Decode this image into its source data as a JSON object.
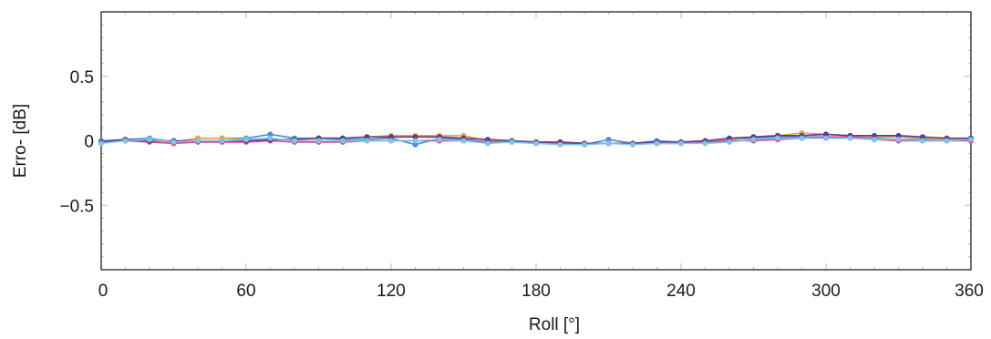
{
  "chart_data": {
    "type": "line",
    "title": "",
    "xlabel": "Roll [°]",
    "ylabel": "Erro- [dB]",
    "xlim": [
      0,
      360
    ],
    "ylim": [
      -1,
      1
    ],
    "xticks": [
      0,
      60,
      120,
      180,
      240,
      300,
      360
    ],
    "xtick_labels": [
      "0",
      "60",
      "120",
      "180",
      "240",
      "300",
      "360"
    ],
    "yticks": [
      -0.5,
      0,
      0.5
    ],
    "ytick_labels": [
      "−0.5",
      "0",
      "0.5"
    ],
    "grid": false,
    "legend": "none",
    "colors": [
      "#4a8fd8",
      "#e8a63a",
      "#d63f8c",
      "#5f3a8f",
      "#7fc4e6"
    ],
    "x": [
      0,
      10,
      20,
      30,
      40,
      50,
      60,
      70,
      80,
      90,
      100,
      110,
      120,
      130,
      140,
      150,
      160,
      170,
      180,
      190,
      200,
      210,
      220,
      230,
      240,
      250,
      260,
      270,
      280,
      290,
      300,
      310,
      320,
      330,
      340,
      350,
      360
    ],
    "series": [
      {
        "values": [
          0,
          0.01,
          0.02,
          -0.01,
          0.02,
          0.02,
          0.02,
          0.05,
          0.02,
          0.02,
          0.01,
          0.01,
          0.02,
          -0.03,
          0.02,
          0.01,
          -0.01,
          0,
          -0.01,
          -0.02,
          -0.03,
          0.01,
          -0.02,
          0,
          -0.01,
          0,
          0.01,
          0.02,
          0.03,
          0.03,
          0.03,
          0.03,
          0.02,
          0.01,
          0.01,
          0.01,
          0.01
        ]
      },
      {
        "values": [
          -0.01,
          0,
          0,
          -0.02,
          0.02,
          0.02,
          0.01,
          0.01,
          0.01,
          0.02,
          0.02,
          0.03,
          0.04,
          0.04,
          0.04,
          0.04,
          0,
          0,
          -0.01,
          -0.01,
          -0.02,
          -0.02,
          -0.02,
          -0.02,
          -0.02,
          0,
          0.01,
          0.03,
          0.04,
          0.06,
          0.05,
          0.04,
          0.03,
          0.03,
          0.02,
          0.01,
          0.02
        ]
      },
      {
        "values": [
          -0.01,
          0,
          -0.01,
          -0.02,
          -0.01,
          -0.01,
          -0.01,
          0,
          -0.01,
          -0.01,
          -0.01,
          0,
          0,
          0,
          0,
          0,
          -0.01,
          -0.01,
          -0.02,
          -0.02,
          -0.02,
          -0.02,
          -0.02,
          -0.02,
          -0.02,
          -0.01,
          0,
          0,
          0.01,
          0.02,
          0.03,
          0.03,
          0.01,
          0,
          0,
          0,
          0
        ]
      },
      {
        "values": [
          -0.01,
          0.01,
          0,
          0,
          0,
          0,
          0,
          0.01,
          0.01,
          0.02,
          0.02,
          0.03,
          0.03,
          0.03,
          0.03,
          0.02,
          0.01,
          0,
          -0.01,
          -0.01,
          -0.02,
          -0.02,
          -0.02,
          -0.01,
          -0.01,
          0,
          0.02,
          0.03,
          0.04,
          0.04,
          0.05,
          0.04,
          0.04,
          0.04,
          0.03,
          0.02,
          0.02
        ]
      },
      {
        "values": [
          -0.02,
          0,
          0.01,
          -0.01,
          0,
          0,
          0.01,
          0.02,
          0,
          0,
          0,
          0,
          0,
          0,
          0.01,
          0,
          -0.02,
          -0.01,
          -0.02,
          -0.03,
          -0.03,
          -0.02,
          -0.03,
          -0.02,
          -0.02,
          -0.02,
          -0.01,
          0.01,
          0.02,
          0.02,
          0.02,
          0.02,
          0.01,
          0.01,
          0,
          0,
          0.01
        ]
      }
    ]
  }
}
